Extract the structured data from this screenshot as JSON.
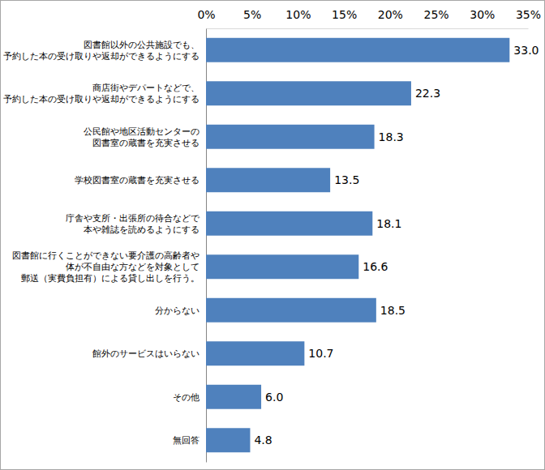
{
  "chart_data": {
    "type": "bar",
    "orientation": "horizontal",
    "categories": [
      "図書館以外の公共施設でも、\n予約した本の受け取りや返却ができるようにする",
      "商店街やデパートなどで、\n予約した本の受け取りや返却ができるようにする",
      "公民館や地区活動センターの\n図書室の蔵書を充実させる",
      "学校図書室の蔵書を充実させる",
      "庁舎や支所・出張所の待合などで\n本や雑誌を読めるようにする",
      "図書館に行くことができない要介護の高齢者や\n体が不自由な方などを対象として\n郵送（実費負担有）による貸し出しを行う。",
      "分からない",
      "館外のサービスはいらない",
      "その他",
      "無回答"
    ],
    "values": [
      33.0,
      22.3,
      18.3,
      13.5,
      18.1,
      16.6,
      18.5,
      10.7,
      6.0,
      4.8
    ],
    "value_labels": [
      "33.0",
      "22.3",
      "18.3",
      "13.5",
      "18.1",
      "16.6",
      "18.5",
      "10.7",
      "6.0",
      "4.8"
    ],
    "data_labels": true,
    "color": "#4f81bd",
    "xlim": [
      0,
      35
    ],
    "xticks": [
      {
        "value": 0,
        "label": "0%"
      },
      {
        "value": 5,
        "label": "5%"
      },
      {
        "value": 10,
        "label": "10%"
      },
      {
        "value": 15,
        "label": "15%"
      },
      {
        "value": 20,
        "label": "20%"
      },
      {
        "value": 25,
        "label": "25%"
      },
      {
        "value": 30,
        "label": "30%"
      },
      {
        "value": 35,
        "label": "35%"
      }
    ],
    "grid": false
  }
}
